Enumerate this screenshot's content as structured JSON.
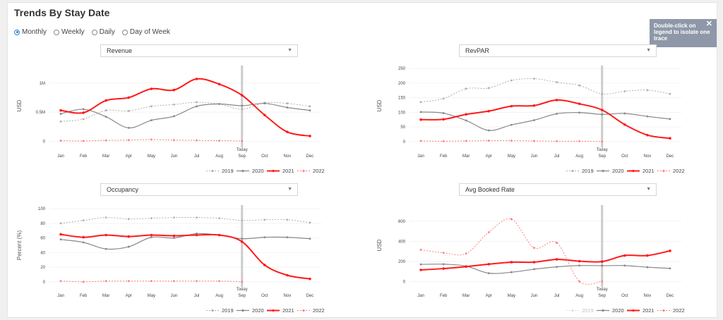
{
  "page": {
    "title": "Trends By Stay Date"
  },
  "period_options": [
    {
      "label": "Monthly",
      "selected": true
    },
    {
      "label": "Weekly",
      "selected": false
    },
    {
      "label": "Daily",
      "selected": false
    },
    {
      "label": "Day of Week",
      "selected": false
    }
  ],
  "tooltip": {
    "text": "Double-click on legend to isolate one trace",
    "close": "✕"
  },
  "colors": {
    "y2019": "#b0b0b0",
    "y2020": "#888888",
    "y2021": "#ff1a1a",
    "y2022": "#ff8080",
    "today": "#cccccc"
  },
  "chart_data": [
    {
      "type": "line",
      "selector": "Revenue",
      "title": "",
      "xlabel": "",
      "ylabel": "USD",
      "categories": [
        "Jan",
        "Feb",
        "Mar",
        "Apr",
        "May",
        "Jun",
        "Jul",
        "Aug",
        "Sep",
        "Oct",
        "Nov",
        "Dec"
      ],
      "ylim": [
        -80000,
        1300000
      ],
      "yticks": [
        0,
        500000,
        1000000
      ],
      "yticklabels": [
        "0",
        "0.5M",
        "1M"
      ],
      "today_label": "Today",
      "today_index": 8,
      "series": [
        {
          "name": "2019",
          "style": "dotted",
          "values": [
            340000,
            380000,
            530000,
            520000,
            600000,
            630000,
            670000,
            640000,
            550000,
            660000,
            650000,
            600000
          ]
        },
        {
          "name": "2020",
          "style": "solid",
          "values": [
            470000,
            550000,
            420000,
            230000,
            360000,
            430000,
            600000,
            640000,
            610000,
            650000,
            580000,
            530000
          ]
        },
        {
          "name": "2021",
          "style": "bold",
          "values": [
            530000,
            490000,
            700000,
            750000,
            900000,
            880000,
            1070000,
            980000,
            790000,
            450000,
            160000,
            90000
          ]
        },
        {
          "name": "2022",
          "style": "dotted",
          "values": [
            10000,
            5000,
            15000,
            20000,
            30000,
            20000,
            15000,
            10000,
            5000,
            null,
            null,
            null
          ]
        }
      ]
    },
    {
      "type": "line",
      "selector": "RevPAR",
      "title": "",
      "xlabel": "",
      "ylabel": "USD",
      "categories": [
        "Jan",
        "Feb",
        "Mar",
        "Apr",
        "May",
        "Jun",
        "Jul",
        "Aug",
        "Sep",
        "Oct",
        "Nov",
        "Dec"
      ],
      "ylim": [
        -15,
        260
      ],
      "yticks": [
        0,
        50,
        100,
        150,
        200,
        250
      ],
      "yticklabels": [
        "0",
        "50",
        "100",
        "150",
        "200",
        "250"
      ],
      "today_label": "Today",
      "today_index": 8,
      "series": [
        {
          "name": "2019",
          "style": "dotted",
          "values": [
            135,
            147,
            181,
            183,
            209,
            215,
            203,
            192,
            163,
            172,
            176,
            163
          ]
        },
        {
          "name": "2020",
          "style": "solid",
          "values": [
            101,
            97,
            72,
            38,
            57,
            73,
            95,
            99,
            93,
            96,
            86,
            77
          ]
        },
        {
          "name": "2021",
          "style": "bold",
          "values": [
            75,
            76,
            93,
            104,
            121,
            123,
            142,
            129,
            108,
            58,
            22,
            11
          ]
        },
        {
          "name": "2022",
          "style": "dotted",
          "values": [
            2,
            1,
            2,
            3,
            3,
            2,
            1,
            1,
            0,
            null,
            null,
            null
          ]
        }
      ]
    },
    {
      "type": "line",
      "selector": "Occupancy",
      "title": "",
      "xlabel": "",
      "ylabel": "Percent (%)",
      "categories": [
        "Jan",
        "Feb",
        "Mar",
        "Apr",
        "May",
        "Jun",
        "Jul",
        "Aug",
        "Sep",
        "Oct",
        "Nov",
        "Dec"
      ],
      "ylim": [
        -5,
        105
      ],
      "yticks": [
        0,
        20,
        40,
        60,
        80,
        100
      ],
      "yticklabels": [
        "0",
        "20",
        "40",
        "60",
        "80",
        "100"
      ],
      "today_label": "Today",
      "today_index": 8,
      "series": [
        {
          "name": "2019",
          "style": "dotted",
          "values": [
            80,
            84,
            88,
            86,
            87,
            88,
            88,
            87,
            84,
            85,
            85,
            81
          ]
        },
        {
          "name": "2020",
          "style": "solid",
          "values": [
            58,
            54,
            45,
            48,
            61,
            60,
            66,
            64,
            59,
            61,
            61,
            59
          ]
        },
        {
          "name": "2021",
          "style": "bold",
          "values": [
            65,
            61,
            64,
            62,
            64,
            63,
            64,
            64,
            55,
            23,
            9,
            4
          ]
        },
        {
          "name": "2022",
          "style": "dotted",
          "values": [
            1,
            0,
            1,
            1,
            1,
            1,
            1,
            1,
            0,
            null,
            null,
            null
          ]
        }
      ]
    },
    {
      "type": "line",
      "selector": "Avg Booked Rate",
      "title": "",
      "xlabel": "",
      "ylabel": "USD",
      "categories": [
        "Jan",
        "Feb",
        "Mar",
        "Apr",
        "May",
        "Jun",
        "Jul",
        "Aug",
        "Sep",
        "Oct",
        "Nov",
        "Dec"
      ],
      "ylim": [
        -40,
        760
      ],
      "yticks": [
        0,
        200,
        400,
        600
      ],
      "yticklabels": [
        "0",
        "200",
        "400",
        "600"
      ],
      "today_label": "Today",
      "today_index": 8,
      "series": [
        {
          "name": "2019",
          "style": "dotted",
          "values": [
            null,
            null,
            null,
            null,
            null,
            null,
            null,
            null,
            null,
            null,
            null,
            null
          ],
          "faded": true
        },
        {
          "name": "2020",
          "style": "solid",
          "values": [
            170,
            172,
            152,
            82,
            92,
            122,
            145,
            158,
            157,
            158,
            142,
            130
          ]
        },
        {
          "name": "2021",
          "style": "bold",
          "values": [
            115,
            128,
            148,
            172,
            192,
            192,
            220,
            202,
            198,
            258,
            258,
            305
          ]
        },
        {
          "name": "2022",
          "style": "dotted",
          "values": [
            315,
            285,
            278,
            490,
            620,
            335,
            385,
            0,
            0,
            null,
            null,
            null
          ]
        }
      ]
    }
  ]
}
